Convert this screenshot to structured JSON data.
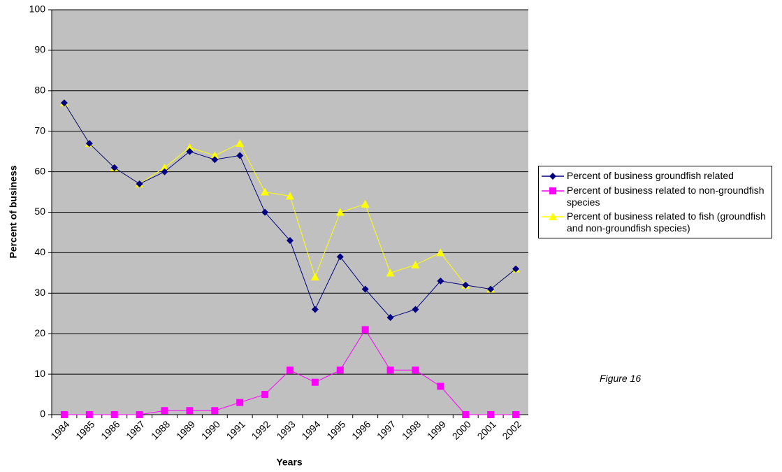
{
  "chart_data": {
    "type": "line",
    "x_label": "Years",
    "y_label": "Percent of business",
    "annotation": "Figure 16",
    "categories": [
      "1984",
      "1985",
      "1986",
      "1987",
      "1988",
      "1989",
      "1990",
      "1991",
      "1992",
      "1993",
      "1994",
      "1995",
      "1996",
      "1997",
      "1998",
      "1999",
      "2000",
      "2001",
      "2002"
    ],
    "series": [
      {
        "name": "Percent of business groundfish related",
        "color": "#000080",
        "marker": "diamond",
        "values": [
          77,
          67,
          61,
          57,
          60,
          65,
          63,
          64,
          50,
          43,
          26,
          39,
          31,
          24,
          26,
          33,
          32,
          31,
          36
        ]
      },
      {
        "name": "Percent of business related to non-groundfish species",
        "color": "#ff00ff",
        "marker": "square",
        "values": [
          0,
          0,
          0,
          0,
          1,
          1,
          1,
          3,
          5,
          11,
          8,
          11,
          21,
          11,
          11,
          7,
          0,
          0,
          0
        ]
      },
      {
        "name": "Percent of business related to fish (groundfish and non-groundfish species)",
        "color": "#ffff00",
        "marker": "triangle",
        "values": [
          77,
          67,
          61,
          57,
          61,
          66,
          64,
          67,
          55,
          54,
          34,
          50,
          52,
          35,
          37,
          40,
          32,
          31,
          36
        ]
      }
    ],
    "ylim": [
      0,
      100
    ],
    "yticks": [
      0,
      10,
      20,
      30,
      40,
      50,
      60,
      70,
      80,
      90,
      100
    ],
    "grid": true,
    "background": "#c0c0c0",
    "legend": "right"
  }
}
